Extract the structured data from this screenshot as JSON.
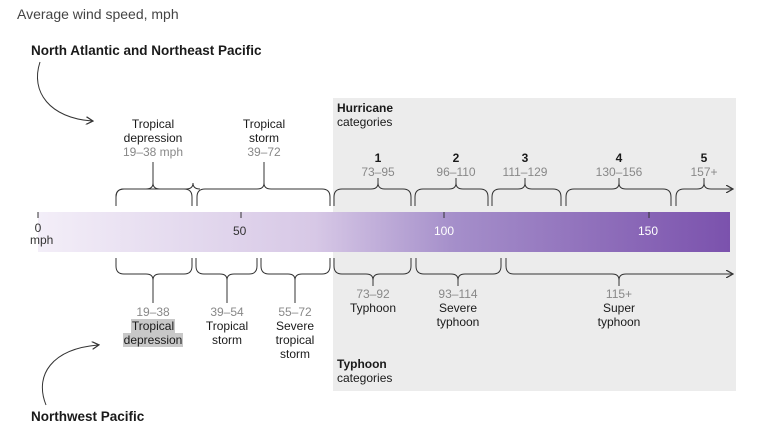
{
  "subtitle": "Average wind speed, mph",
  "regions": {
    "atlantic": "North Atlantic and Northeast Pacific",
    "pacific": "Northwest Pacific"
  },
  "hurricane_header": {
    "bold": "Hurricane",
    "rest": "categories"
  },
  "typhoon_header": {
    "bold": "Typhoon",
    "rest": "categories"
  },
  "scale": {
    "zero_label": "0",
    "unit": "mph",
    "ticks": [
      "50",
      "100",
      "150"
    ]
  },
  "atlantic_groups": [
    {
      "name_lines": [
        "Tropical",
        "depression"
      ],
      "range": "19–38 mph"
    },
    {
      "name_lines": [
        "Tropical",
        "storm"
      ],
      "range": "39–72"
    }
  ],
  "hurricane_categories": [
    {
      "num": "1",
      "range": "73–95"
    },
    {
      "num": "2",
      "range": "96–110"
    },
    {
      "num": "3",
      "range": "111–129"
    },
    {
      "num": "4",
      "range": "130–156"
    },
    {
      "num": "5",
      "range": "157+"
    }
  ],
  "pacific_groups": [
    {
      "range": "19–38",
      "name_lines": [
        "Tropical",
        "depression"
      ]
    },
    {
      "range": "39–54",
      "name_lines": [
        "Tropical",
        "storm"
      ]
    },
    {
      "range": "55–72",
      "name_lines": [
        "Severe",
        "tropical",
        "storm"
      ]
    }
  ],
  "typhoon_categories": [
    {
      "range": "73–92",
      "name_lines": [
        "Typhoon"
      ]
    },
    {
      "range": "93–114",
      "name_lines": [
        "Severe",
        "typhoon"
      ]
    },
    {
      "range": "115+",
      "name_lines": [
        "Super",
        "typhoon"
      ]
    }
  ],
  "colors": {
    "bar_start": "#f3eef8",
    "bar_end": "#7b52ad",
    "shade": "#ececec",
    "highlight": "#c8c8c8"
  }
}
